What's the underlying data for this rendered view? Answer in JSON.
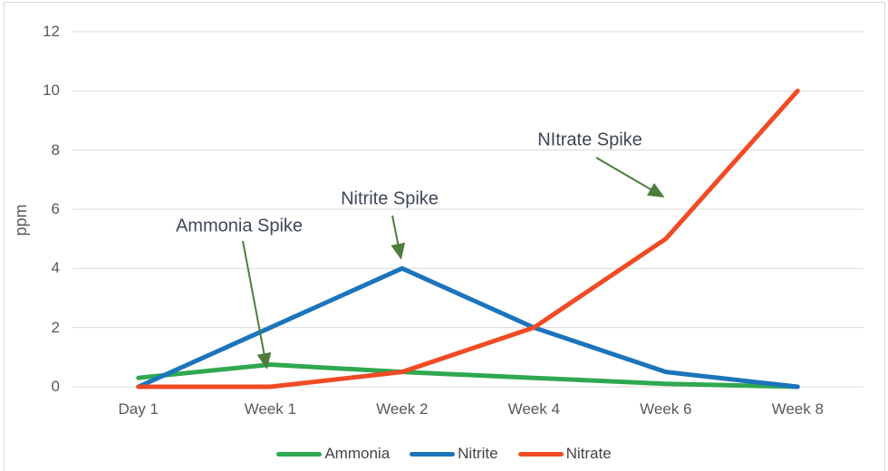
{
  "chart_data": {
    "type": "line",
    "title": "",
    "xlabel": "",
    "ylabel": "ppm",
    "categories": [
      "Day 1",
      "Week 1",
      "Week 2",
      "Week 4",
      "Week 6",
      "Week 8"
    ],
    "series": [
      {
        "name": "Ammonia",
        "color": "#2fa84f",
        "values": [
          0.3,
          0.75,
          0.5,
          0.3,
          0.1,
          0
        ]
      },
      {
        "name": "Nitrite",
        "color": "#1b74bc",
        "values": [
          0,
          2,
          4,
          2,
          0.5,
          0
        ]
      },
      {
        "name": "Nitrate",
        "color": "#f04b24",
        "values": [
          0,
          0,
          0.5,
          2,
          5,
          10
        ]
      }
    ],
    "ylim": [
      0,
      12
    ],
    "yticks": [
      0,
      2,
      4,
      6,
      8,
      10,
      12
    ],
    "grid": true,
    "legend_position": "bottom",
    "annotations": [
      {
        "label": "Ammonia Spike",
        "target": "Ammonia peak at Week 1"
      },
      {
        "label": "Nitrite Spike",
        "target": "Nitrite peak at Week 2"
      },
      {
        "label": "NItrate Spike",
        "target": "Nitrate rise at Week 6"
      }
    ]
  },
  "colors": {
    "gridline": "#d9d9d9",
    "axis_text": "#595959",
    "annotation_text": "#3f4757",
    "annotation_arrow": "#4e7d3c",
    "frame_border": "#d9d9d9",
    "background": "#ffffff"
  }
}
